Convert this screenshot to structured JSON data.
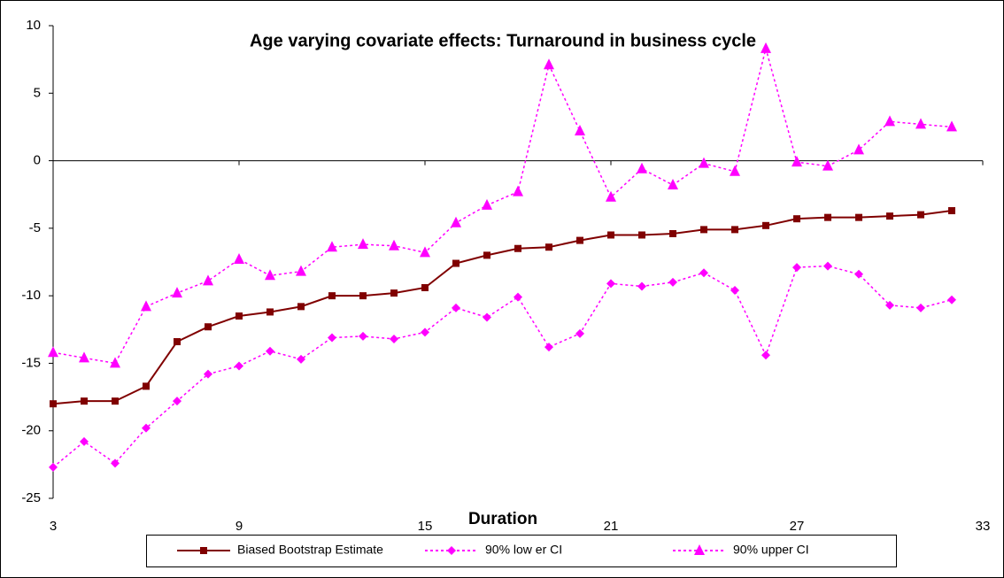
{
  "chart_data": {
    "type": "line",
    "title": "Age varying covariate effects: Turnaround in business cycle",
    "x_label": "Duration",
    "x": [
      3,
      4,
      5,
      6,
      7,
      8,
      9,
      10,
      11,
      12,
      13,
      14,
      15,
      16,
      17,
      18,
      19,
      20,
      21,
      22,
      23,
      24,
      25,
      26,
      27,
      28,
      29,
      30,
      31,
      32
    ],
    "xlim": [
      3,
      33
    ],
    "xticks": [
      3,
      9,
      15,
      21,
      27,
      33
    ],
    "ylim": [
      -25,
      10
    ],
    "yticks": [
      -25,
      -20,
      -15,
      -10,
      -5,
      0,
      5,
      10
    ],
    "series": [
      {
        "name": "Biased Bootstrap Estimate",
        "color": "#800000",
        "marker": "square",
        "line_style": "solid",
        "values": [
          -18.0,
          -17.8,
          -17.8,
          -16.7,
          -13.4,
          -12.3,
          -11.5,
          -11.2,
          -10.8,
          -10.0,
          -10.0,
          -9.8,
          -9.4,
          -7.6,
          -7.0,
          -6.5,
          -6.4,
          -5.9,
          -5.5,
          -5.5,
          -5.4,
          -5.1,
          -5.1,
          -4.8,
          -4.3,
          -4.2,
          -4.2,
          -4.1,
          -4.0,
          -3.7
        ]
      },
      {
        "name": "90% low er CI",
        "color": "#ff00ff",
        "marker": "diamond",
        "line_style": "dashed",
        "values": [
          -22.7,
          -20.8,
          -22.4,
          -19.8,
          -17.8,
          -15.8,
          -15.2,
          -14.1,
          -14.7,
          -13.1,
          -13.0,
          -13.2,
          -12.7,
          -10.9,
          -11.6,
          -10.1,
          -13.8,
          -12.8,
          -9.1,
          -9.3,
          -9.0,
          -8.3,
          -9.6,
          -14.4,
          -7.9,
          -7.8,
          -8.4,
          -10.7,
          -10.9,
          -10.3
        ]
      },
      {
        "name": "90% upper CI",
        "color": "#ff00ff",
        "marker": "triangle",
        "line_style": "dashed",
        "values": [
          -14.2,
          -14.6,
          -15.0,
          -10.8,
          -9.8,
          -8.9,
          -7.3,
          -8.5,
          -8.2,
          -6.4,
          -6.2,
          -6.3,
          -6.8,
          -4.6,
          -3.3,
          -2.3,
          7.1,
          2.2,
          -2.7,
          -0.6,
          -1.8,
          -0.2,
          -0.8,
          8.3,
          -0.1,
          -0.4,
          0.8,
          2.9,
          2.7,
          2.5
        ]
      }
    ]
  }
}
